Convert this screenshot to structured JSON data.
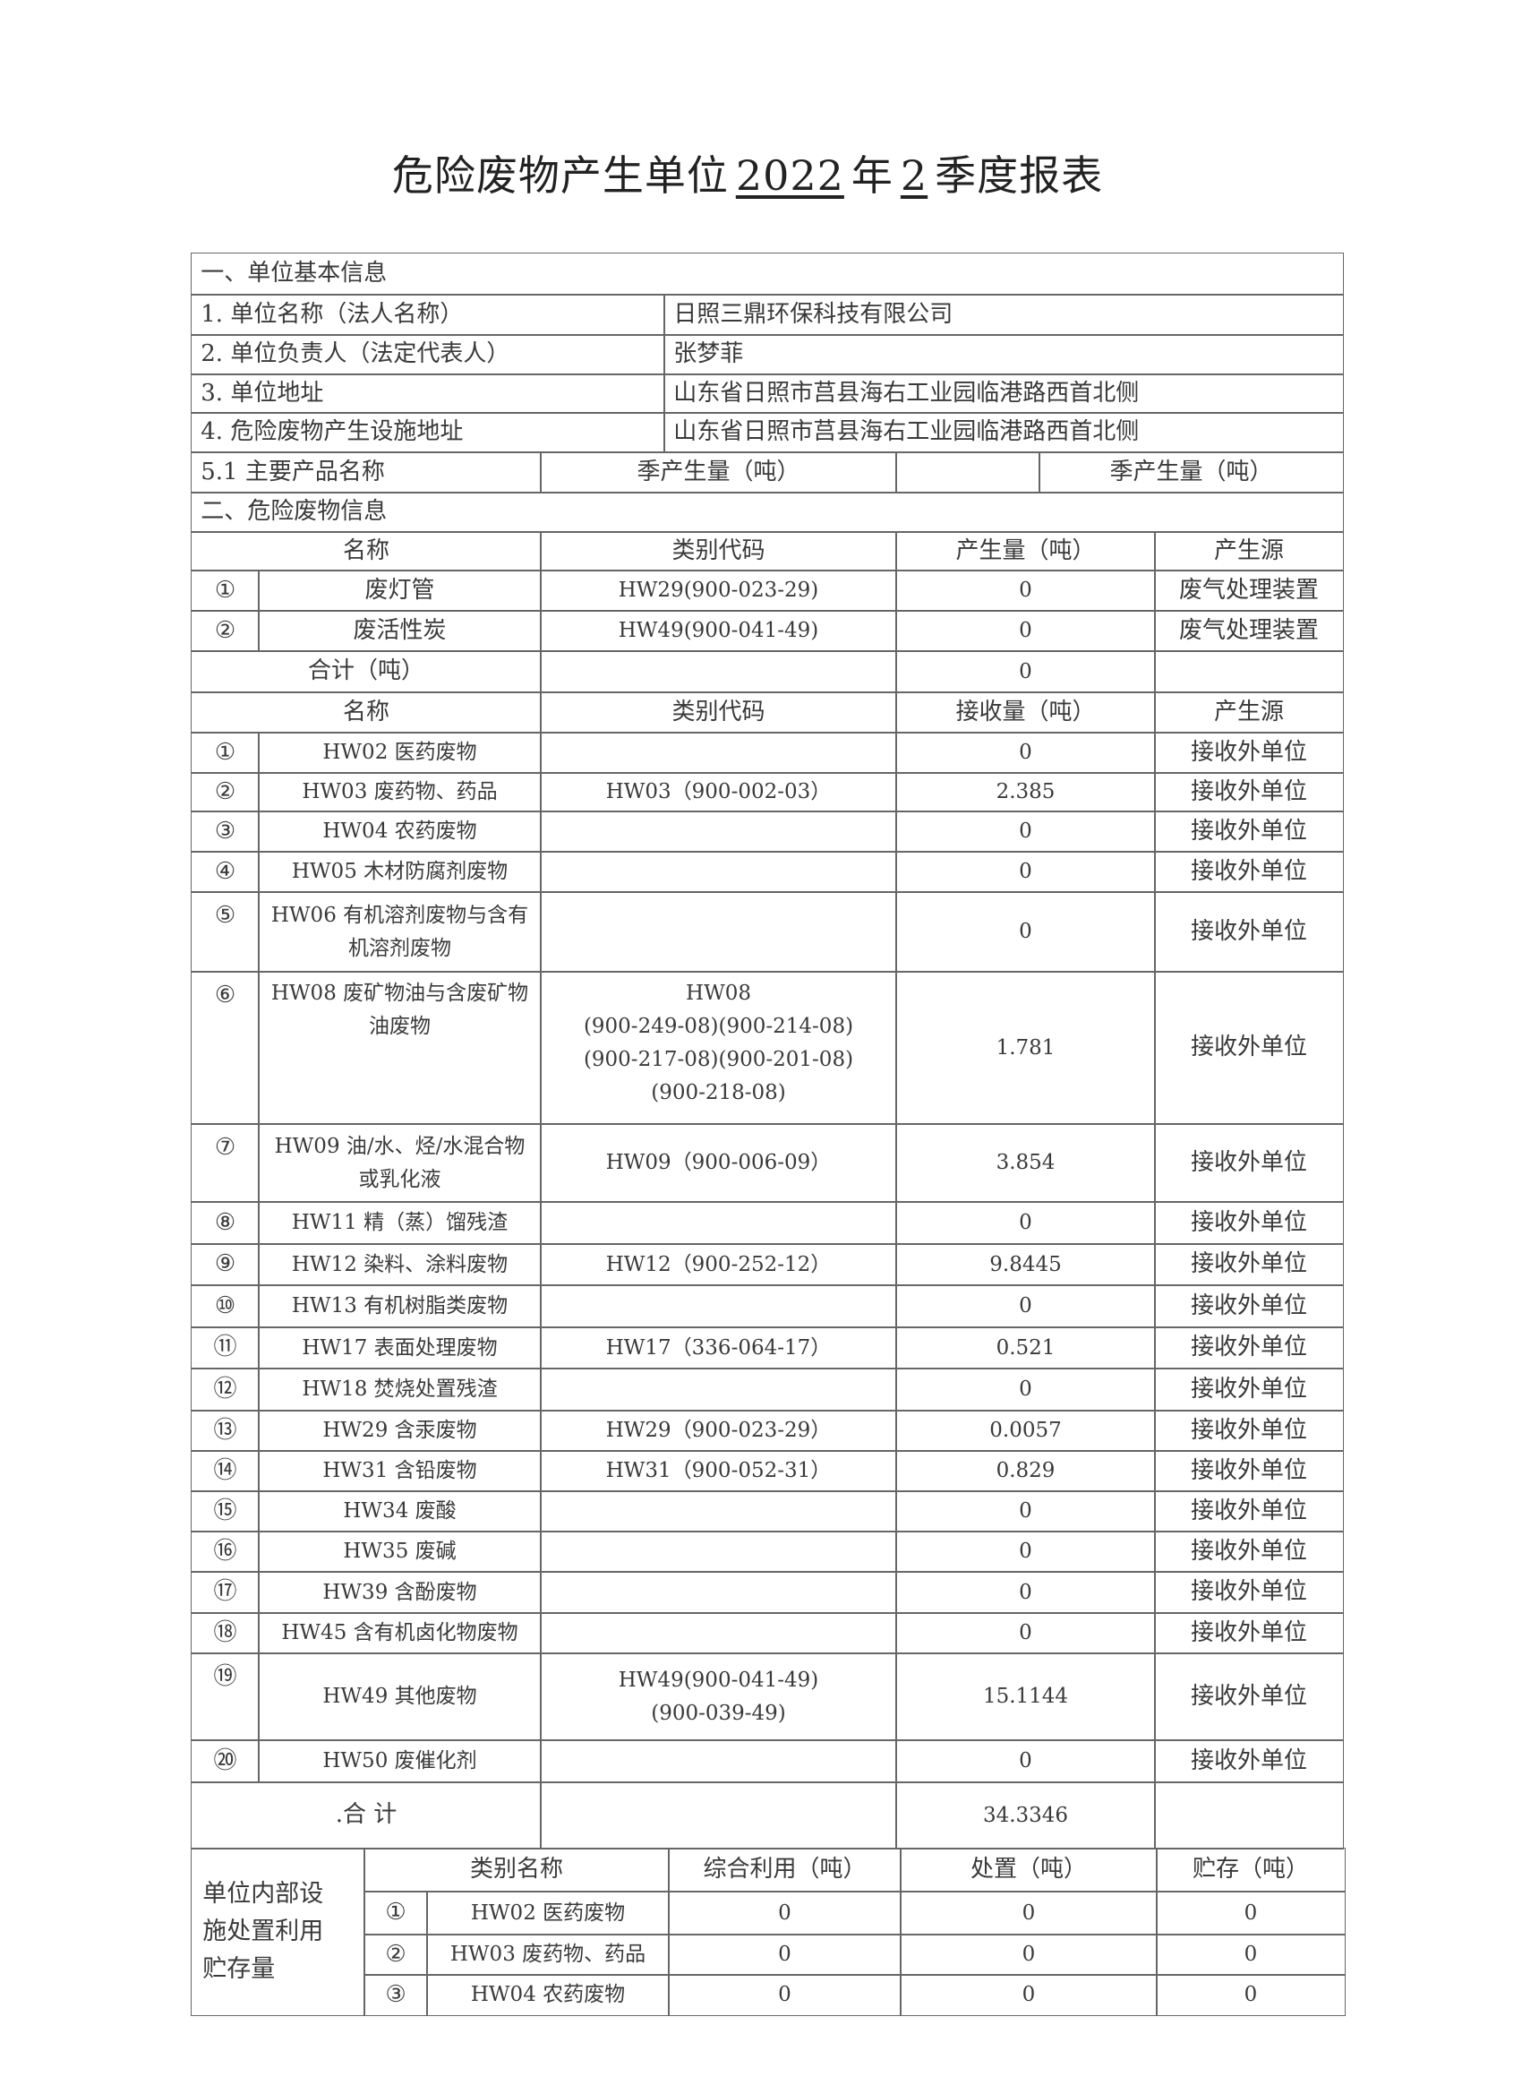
{
  "title": {
    "prefix": "危险废物产生单位",
    "year": "2022",
    "year_suffix": "年",
    "quarter": "2",
    "suffix": "季度报表"
  },
  "section1": {
    "heading": "一、单位基本信息",
    "rows": [
      {
        "label": "1. 单位名称（法人名称）",
        "value": "日照三鼎环保科技有限公司"
      },
      {
        "label": "2. 单位负责人（法定代表人）",
        "value": "张梦菲"
      },
      {
        "label": "3. 单位地址",
        "value": "山东省日照市莒县海右工业园临港路西首北侧"
      },
      {
        "label": "4. 危险废物产生设施地址",
        "value": "山东省日照市莒县海右工业园临港路西首北侧"
      }
    ],
    "product_row": {
      "label": "5.1 主要产品名称",
      "col1": "季产生量（吨）",
      "col2": "",
      "col3": "季产生量（吨）"
    }
  },
  "section2": {
    "heading": "二、危险废物信息",
    "generated_header": [
      "名称",
      "类别代码",
      "产生量（吨）",
      "产生源"
    ],
    "generated": [
      {
        "no": "①",
        "name": "废灯管",
        "code": "HW29(900-023-29)",
        "amount": "0",
        "source": "废气处理装置"
      },
      {
        "no": "②",
        "name": "废活性炭",
        "code": "HW49(900-041-49)",
        "amount": "0",
        "source": "废气处理装置"
      }
    ],
    "generated_total": {
      "label": "合计（吨）",
      "amount": "0"
    },
    "received_header": [
      "名称",
      "类别代码",
      "接收量（吨）",
      "产生源"
    ],
    "received": [
      {
        "no": "①",
        "name": "HW02 医药废物",
        "code": "",
        "amount": "0",
        "source": "接收外单位"
      },
      {
        "no": "②",
        "name": "HW03 废药物、药品",
        "code": "HW03（900-002-03）",
        "amount": "2.385",
        "source": "接收外单位"
      },
      {
        "no": "③",
        "name": "HW04 农药废物",
        "code": "",
        "amount": "0",
        "source": "接收外单位"
      },
      {
        "no": "④",
        "name": "HW05 木材防腐剂废物",
        "code": "",
        "amount": "0",
        "source": "接收外单位"
      },
      {
        "no": "⑤",
        "name": "HW06 有机溶剂废物与含有\n机溶剂废物",
        "code": "",
        "amount": "0",
        "source": "接收外单位"
      },
      {
        "no": "⑥",
        "name": "HW08 废矿物油与含废矿物\n油废物",
        "code": "HW08\n(900-249-08)(900-214-08)\n(900-217-08)(900-201-08)\n(900-218-08)",
        "amount": "1.781",
        "source": "接收外单位"
      },
      {
        "no": "⑦",
        "name": "HW09 油/水、烃/水混合物\n或乳化液",
        "code": "HW09（900-006-09）",
        "amount": "3.854",
        "source": "接收外单位"
      },
      {
        "no": "⑧",
        "name": "HW11 精（蒸）馏残渣",
        "code": "",
        "amount": "0",
        "source": "接收外单位"
      },
      {
        "no": "⑨",
        "name": "HW12 染料、涂料废物",
        "code": "HW12（900-252-12）",
        "amount": "9.8445",
        "source": "接收外单位"
      },
      {
        "no": "⑩",
        "name": "HW13 有机树脂类废物",
        "code": "",
        "amount": "0",
        "source": "接收外单位"
      },
      {
        "no": "⑪",
        "name": "HW17 表面处理废物",
        "code": "HW17（336-064-17）",
        "amount": "0.521",
        "source": "接收外单位"
      },
      {
        "no": "⑫",
        "name": "HW18 焚烧处置残渣",
        "code": "",
        "amount": "0",
        "source": "接收外单位"
      },
      {
        "no": "⑬",
        "name": "HW29 含汞废物",
        "code": "HW29（900-023-29）",
        "amount": "0.0057",
        "source": "接收外单位"
      },
      {
        "no": "⑭",
        "name": "HW31 含铅废物",
        "code": "HW31（900-052-31）",
        "amount": "0.829",
        "source": "接收外单位"
      },
      {
        "no": "⑮",
        "name": "HW34 废酸",
        "code": "",
        "amount": "0",
        "source": "接收外单位"
      },
      {
        "no": "⑯",
        "name": "HW35 废碱",
        "code": "",
        "amount": "0",
        "source": "接收外单位"
      },
      {
        "no": "⑰",
        "name": "HW39 含酚废物",
        "code": "",
        "amount": "0",
        "source": "接收外单位"
      },
      {
        "no": "⑱",
        "name": "HW45 含有机卤化物废物",
        "code": "",
        "amount": "0",
        "source": "接收外单位"
      },
      {
        "no": "⑲",
        "name": "HW49 其他废物",
        "code": "HW49(900-041-49)\n(900-039-49)",
        "amount": "15.1144",
        "source": "接收外单位"
      },
      {
        "no": "⑳",
        "name": "HW50 废催化剂",
        "code": "",
        "amount": "0",
        "source": "接收外单位"
      }
    ],
    "received_total": {
      "label": ".合        计",
      "amount": "34.3346"
    }
  },
  "internal": {
    "label": "单位内部设\n施处置利用\n贮存量",
    "header": [
      "类别名称",
      "综合利用（吨）",
      "处置（吨）",
      "贮存（吨）"
    ],
    "rows": [
      {
        "no": "①",
        "name": "HW02 医药废物",
        "utilized": "0",
        "disposed": "0",
        "stored": "0"
      },
      {
        "no": "②",
        "name": "HW03 废药物、药品",
        "utilized": "0",
        "disposed": "0",
        "stored": "0"
      },
      {
        "no": "③",
        "name": "HW04 农药废物",
        "utilized": "0",
        "disposed": "0",
        "stored": "0"
      }
    ]
  }
}
